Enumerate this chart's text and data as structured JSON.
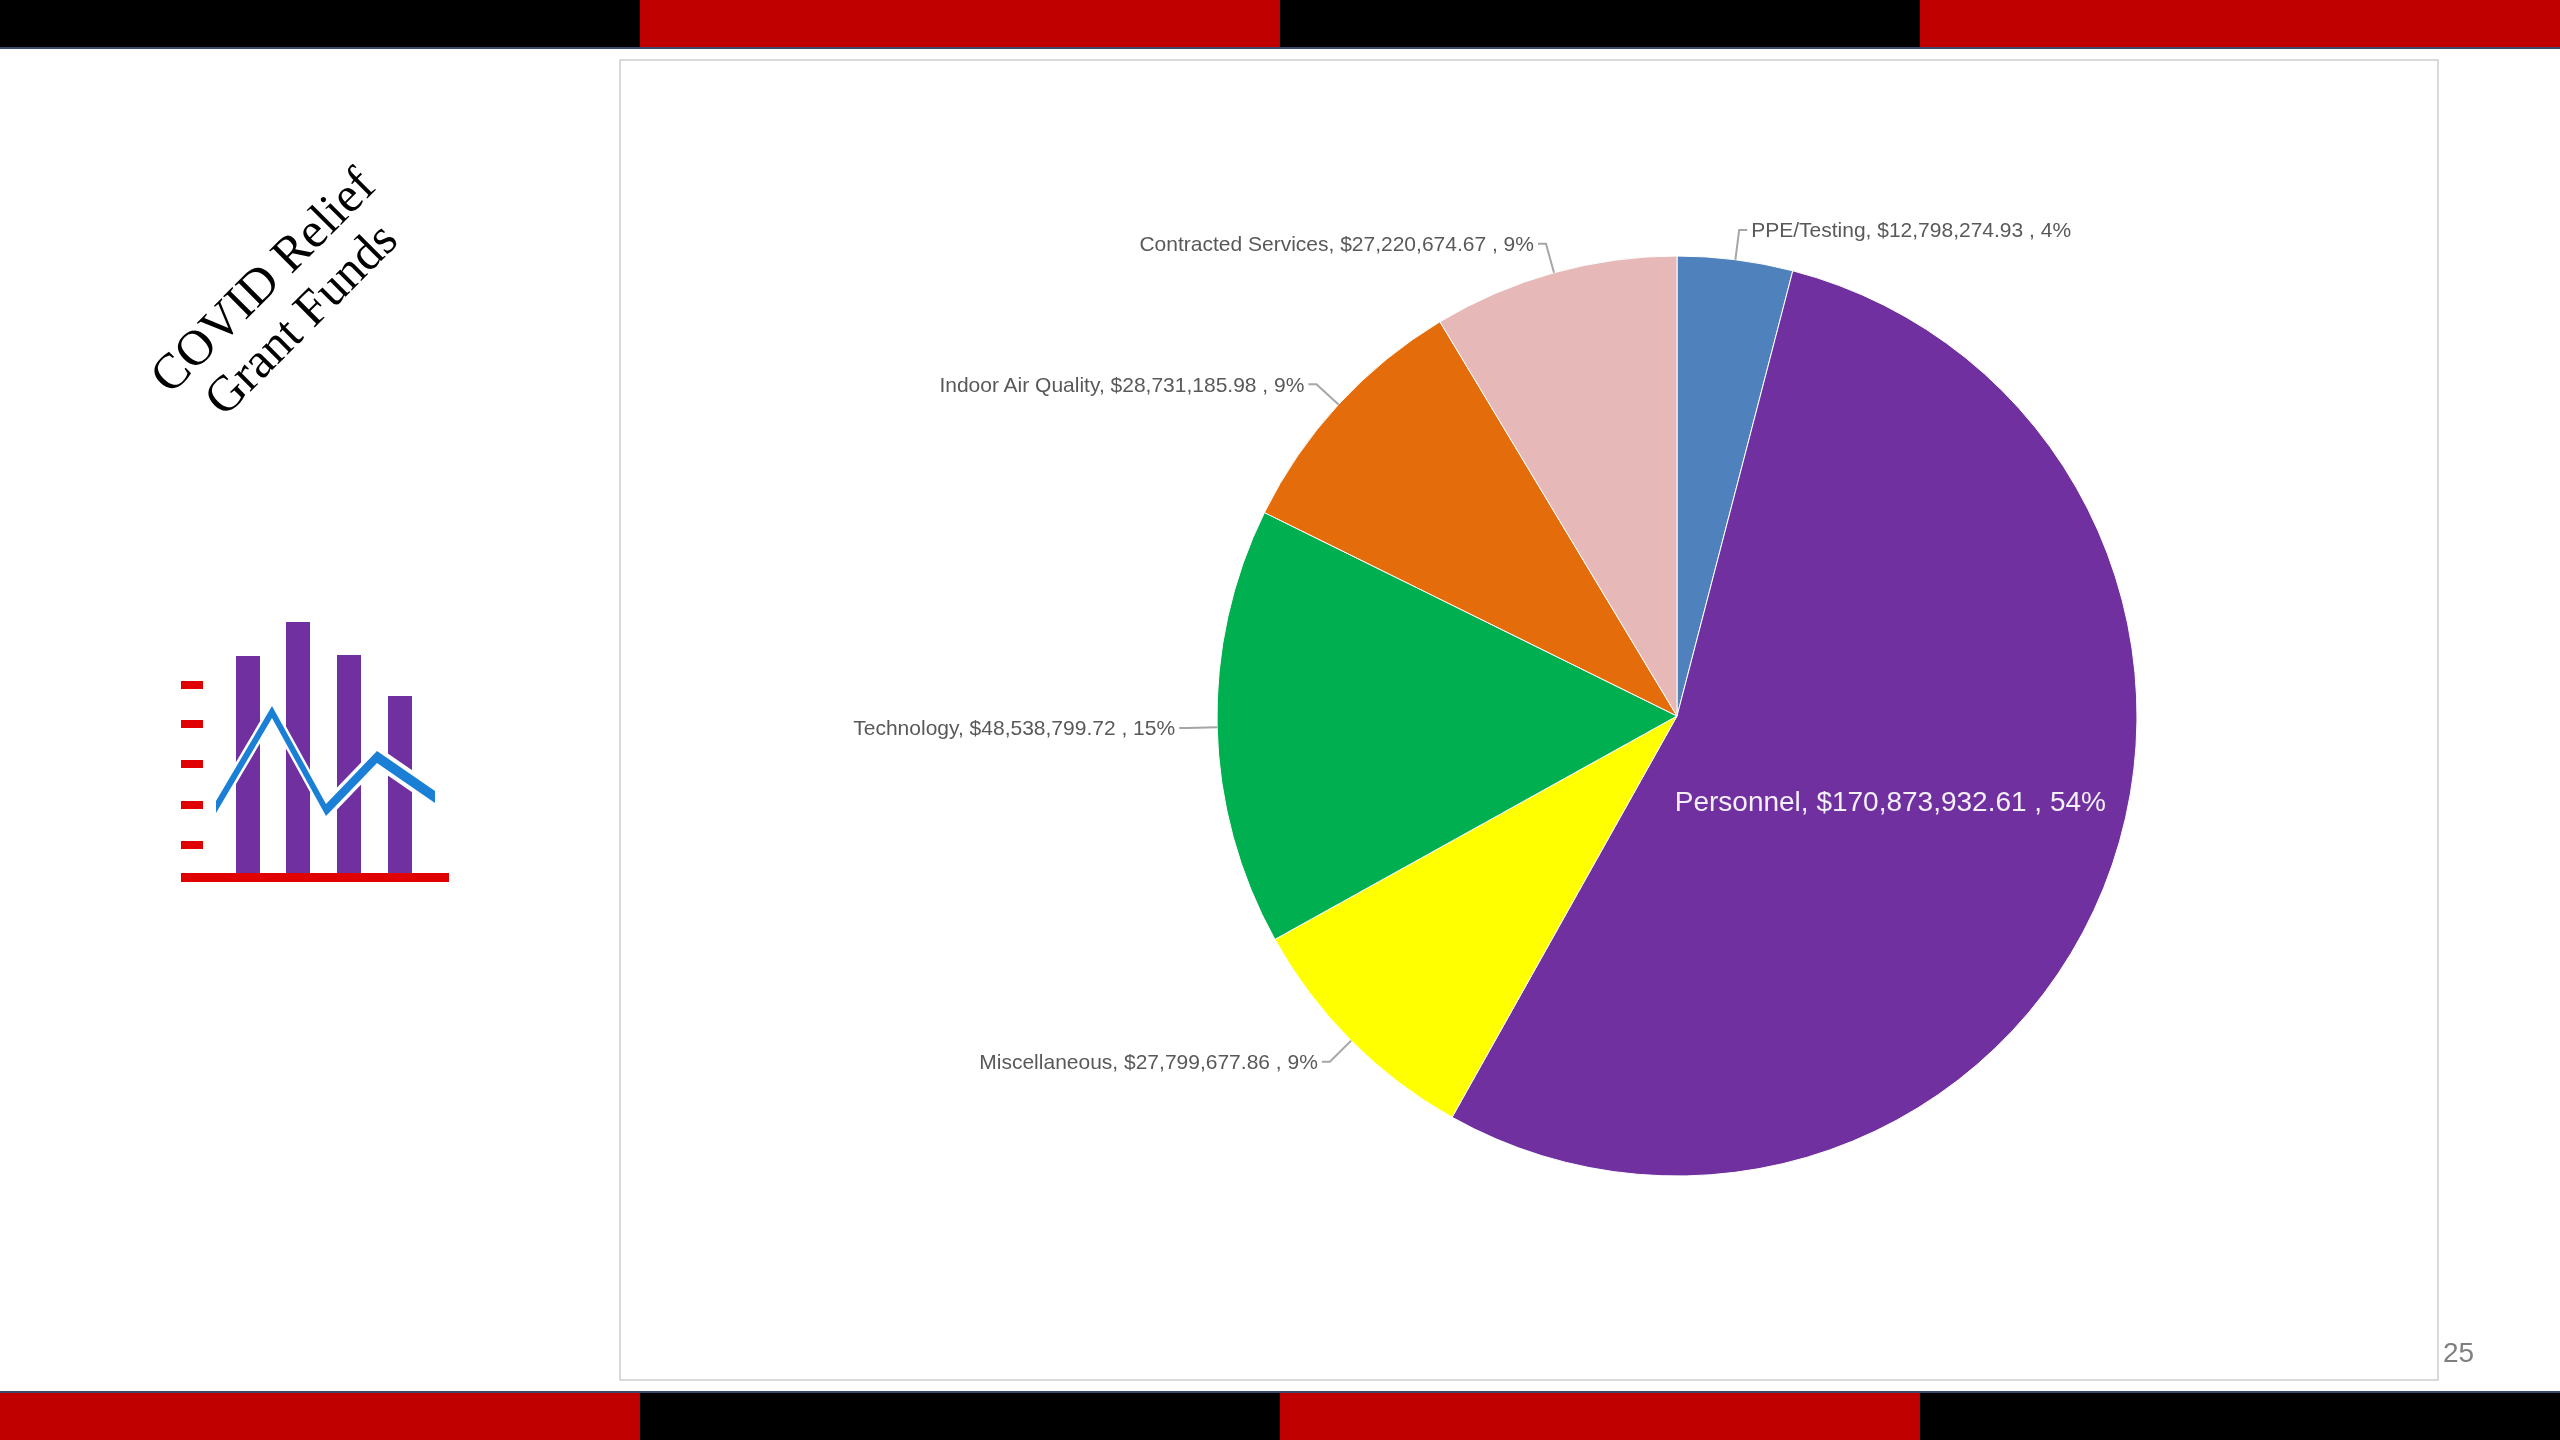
{
  "chart_data": {
    "type": "pie",
    "title": "COVID Relief Grant Funds",
    "categories": [
      "PPE/Testing",
      "Personnel",
      "Miscellaneous",
      "Technology",
      "Indoor Air Quality",
      "Contracted Services"
    ],
    "values": [
      12798274.93,
      170873932.61,
      27799677.86,
      48538799.72,
      28731185.98,
      27220674.67
    ],
    "colors": [
      "#4f81bd",
      "#7030a0",
      "#ffff00",
      "#00b050",
      "#e46c0a",
      "#e6b9b8"
    ],
    "value_labels": [
      "$12,798,274.93 , 4%",
      "$170,873,932.61 , 54%",
      "$27,799,677.86 , 9%",
      "$48,538,799.72 , 15%",
      "$28,731,185.98 , 9%",
      "$27,220,674.67 , 9%"
    ],
    "annotations": [
      "25"
    ]
  }
}
